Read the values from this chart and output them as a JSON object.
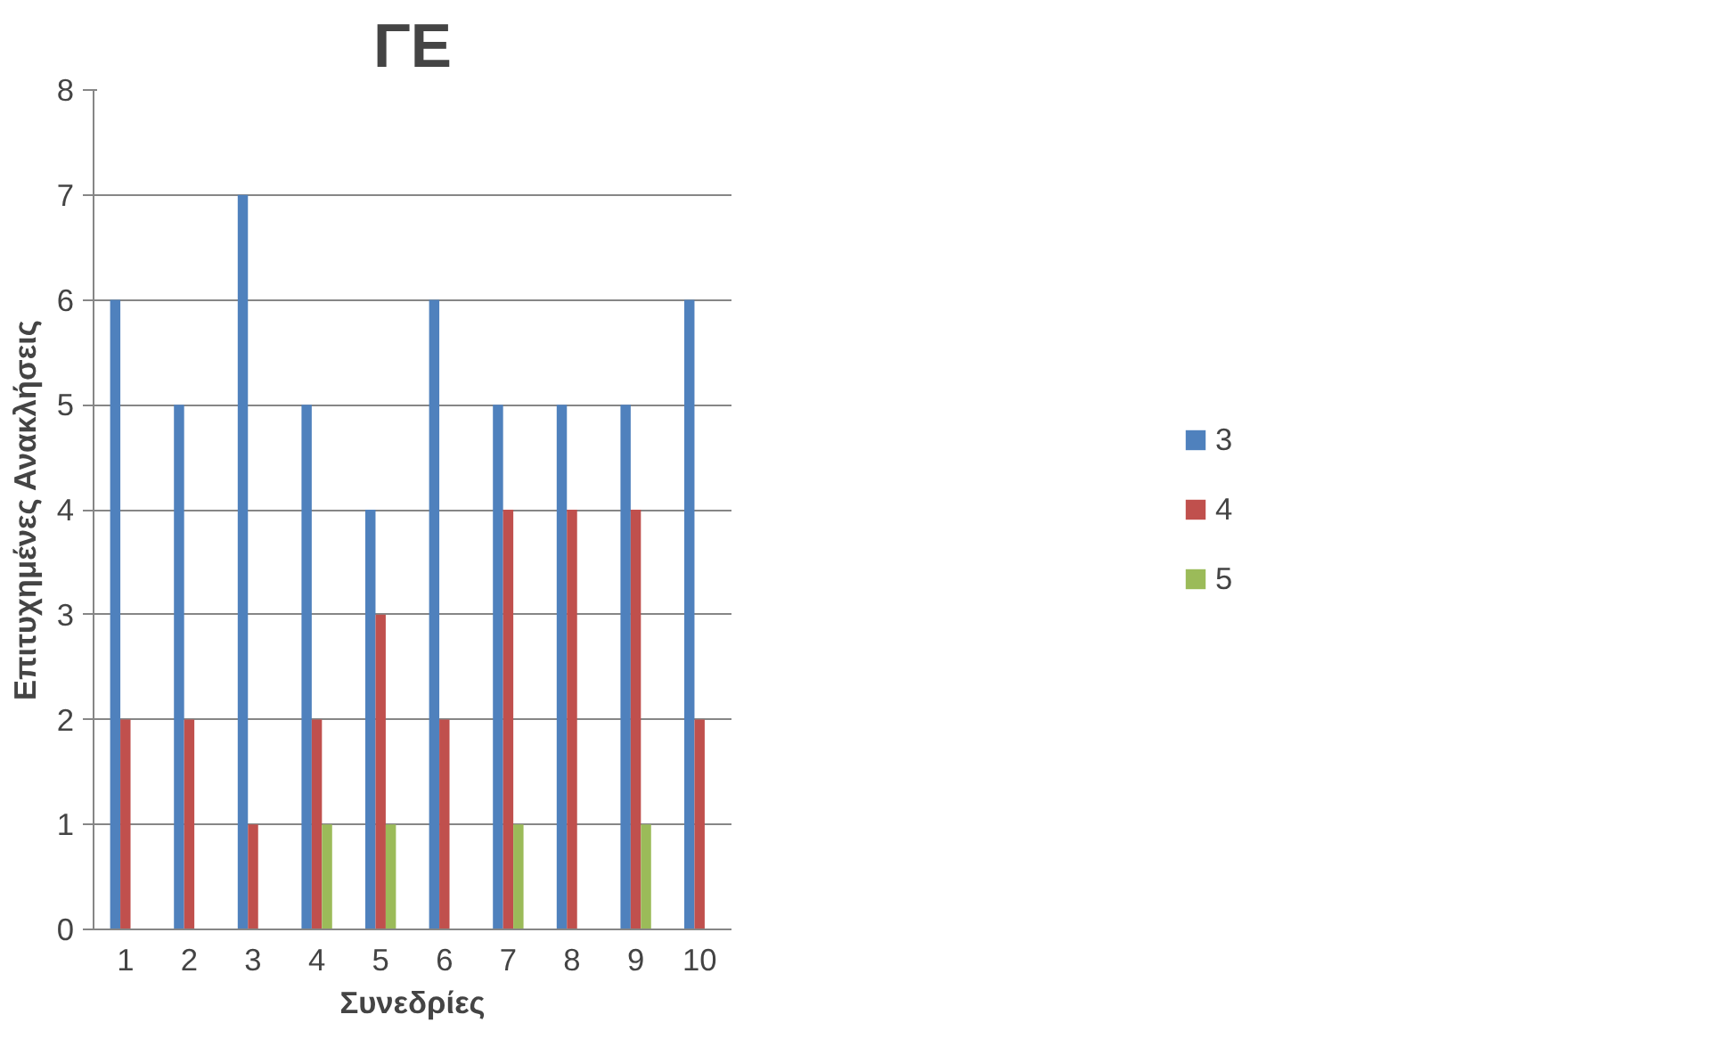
{
  "chart_data": {
    "type": "bar",
    "title": "ΓΕ",
    "xlabel": "Συνεδρίες",
    "ylabel": "Επιτυχημένες Ανακλήσεις",
    "categories": [
      "1",
      "2",
      "3",
      "4",
      "5",
      "6",
      "7",
      "8",
      "9",
      "10"
    ],
    "series": [
      {
        "name": "3",
        "color": "#4f81bd",
        "values": [
          6,
          5,
          7,
          5,
          4,
          6,
          5,
          5,
          5,
          6
        ]
      },
      {
        "name": "4",
        "color": "#c0504d",
        "values": [
          2,
          2,
          1,
          2,
          3,
          2,
          4,
          4,
          4,
          2
        ]
      },
      {
        "name": "5",
        "color": "#9bbb59",
        "values": [
          0,
          0,
          0,
          1,
          1,
          0,
          1,
          0,
          1,
          0
        ]
      }
    ],
    "ylim": [
      0,
      8
    ],
    "yticks": [
      0,
      1,
      2,
      3,
      4,
      5,
      6,
      7,
      8
    ],
    "grid": "y",
    "legend": "right"
  }
}
